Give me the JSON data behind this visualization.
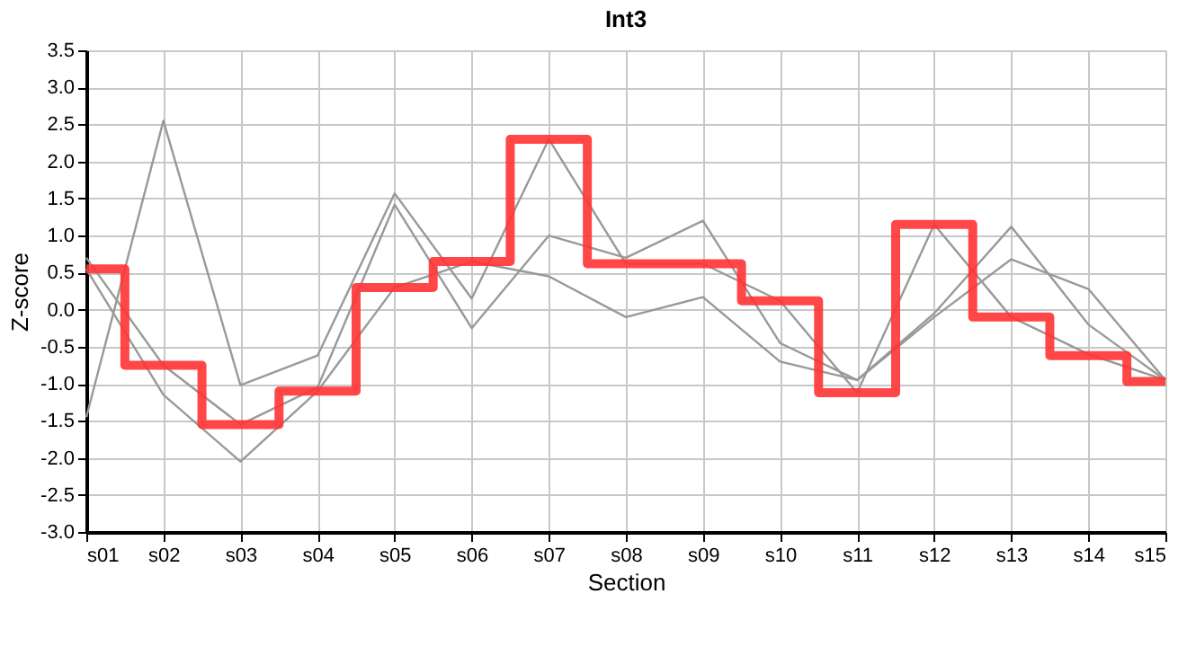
{
  "chart_data": {
    "type": "line",
    "title": "Int3",
    "xlabel": "Section",
    "ylabel": "Z-score",
    "categories": [
      "s01",
      "s02",
      "s03",
      "s04",
      "s05",
      "s06",
      "s07",
      "s08",
      "s09",
      "s10",
      "s11",
      "s12",
      "s13",
      "s14",
      "s15"
    ],
    "series": [
      {
        "color": "#999999",
        "values": [
          -1.45,
          2.55,
          -1.02,
          -0.62,
          1.57,
          0.15,
          2.3,
          0.62,
          0.62,
          0.12,
          -1.12,
          1.15,
          -0.1,
          -0.6,
          -0.95
        ]
      },
      {
        "color": "#999999",
        "values": [
          0.7,
          -0.75,
          -1.55,
          -1.05,
          1.42,
          -0.25,
          1.0,
          0.7,
          1.2,
          -0.45,
          -0.95,
          -0.05,
          1.12,
          -0.2,
          -0.95
        ]
      },
      {
        "color": "#999999",
        "values": [
          0.55,
          -1.15,
          -2.05,
          -1.1,
          0.3,
          0.65,
          0.45,
          -0.1,
          0.17,
          -0.7,
          -0.95,
          -0.1,
          0.68,
          0.28,
          -0.95
        ]
      },
      {
        "color": "#ff3333",
        "type": "step",
        "values": [
          0.55,
          -0.75,
          -1.55,
          -1.1,
          0.3,
          0.65,
          2.3,
          0.62,
          0.62,
          0.12,
          -1.12,
          1.15,
          -0.1,
          -0.62,
          -0.97
        ]
      }
    ],
    "ylim": [
      -3.0,
      3.5
    ],
    "yticks": [
      {
        "value": -3,
        "label": "-3.0"
      },
      {
        "value": -2.5,
        "label": "-2.5"
      },
      {
        "value": -2,
        "label": "-2.0"
      },
      {
        "value": -1.5,
        "label": "-1.5"
      },
      {
        "value": -1,
        "label": "-1.0"
      },
      {
        "value": -0.5,
        "label": "-0.5"
      },
      {
        "value": 0,
        "label": "0.0"
      },
      {
        "value": 0.5,
        "label": "0.5"
      },
      {
        "value": 1,
        "label": "1.0"
      },
      {
        "value": 1.5,
        "label": "1.5"
      },
      {
        "value": 2,
        "label": "2.0"
      },
      {
        "value": 2.5,
        "label": "2.5"
      },
      {
        "value": 3,
        "label": "3.0"
      },
      {
        "value": 3.5,
        "label": "3.5"
      }
    ],
    "grid": true,
    "marker": "none",
    "line_style": "solid"
  }
}
